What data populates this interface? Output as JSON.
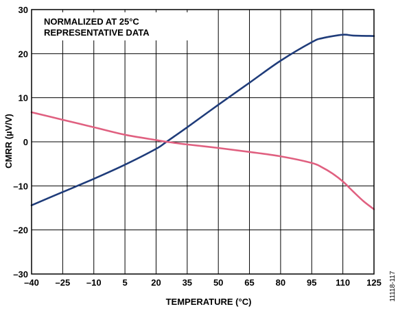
{
  "chart_data": {
    "type": "line",
    "xlabel": "TEMPERATURE (°C)",
    "ylabel": "CMRR (µV/V)",
    "xlim": [
      -40,
      125
    ],
    "ylim": [
      -30,
      30
    ],
    "x_ticks": [
      -40,
      -25,
      -10,
      5,
      20,
      35,
      50,
      65,
      80,
      95,
      110,
      125
    ],
    "x_tick_labels": [
      "–40",
      "–25",
      "–10",
      "5",
      "20",
      "35",
      "50",
      "65",
      "80",
      "95",
      "110",
      "125"
    ],
    "y_ticks": [
      -30,
      -20,
      -10,
      0,
      10,
      20,
      30
    ],
    "y_tick_labels": [
      "–30",
      "–20",
      "–10",
      "0",
      "10",
      "20",
      "30"
    ],
    "grid": true,
    "legend": "none",
    "annotations": [
      "NORMALIZED AT 25°C",
      "REPRESENTATIVE DATA"
    ],
    "figure_id": "11118-117",
    "series": [
      {
        "color": "#1f3c7a",
        "x": [
          -40,
          -25,
          -10,
          5,
          20,
          25,
          35,
          50,
          65,
          80,
          95,
          100,
          110,
          115,
          125
        ],
        "y": [
          -14.4,
          -11.4,
          -8.4,
          -5.2,
          -1.6,
          0,
          3.3,
          8.4,
          13.4,
          18.4,
          22.6,
          23.5,
          24.3,
          24.1,
          24.0
        ]
      },
      {
        "color": "#e06080",
        "x": [
          -40,
          -25,
          -10,
          5,
          20,
          25,
          35,
          50,
          65,
          80,
          95,
          100,
          105,
          110,
          115,
          120,
          125
        ],
        "y": [
          6.7,
          5.0,
          3.3,
          1.6,
          0.4,
          0,
          -0.6,
          -1.4,
          -2.3,
          -3.3,
          -4.8,
          -5.8,
          -7.2,
          -9.0,
          -11.3,
          -13.5,
          -15.3
        ]
      }
    ]
  }
}
